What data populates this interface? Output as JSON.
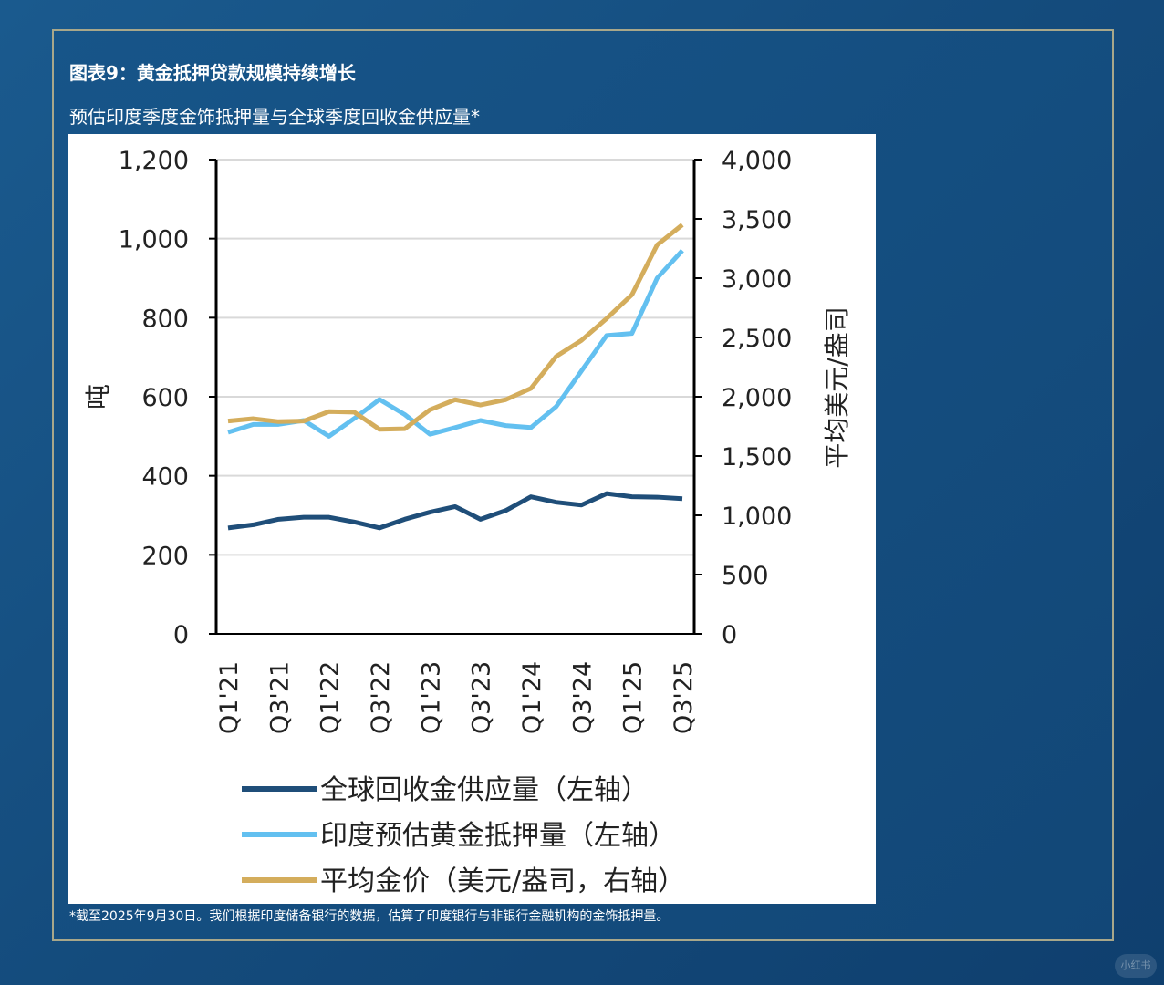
{
  "title": "图表9：黄金抵押贷款规模持续增长",
  "subtitle": "预估印度季度金饰抵押量与全球季度回收金供应量*",
  "footnote": "*截至2025年9月30日。我们根据印度储备银行的数据，估算了印度银行与非银行金融机构的金饰抵押量。",
  "watermark": "小红书",
  "chart_data": {
    "type": "line",
    "x": [
      "Q1'21",
      "Q2'21",
      "Q3'21",
      "Q4'21",
      "Q1'22",
      "Q2'22",
      "Q3'22",
      "Q4'22",
      "Q1'23",
      "Q2'23",
      "Q3'23",
      "Q4'23",
      "Q1'24",
      "Q2'24",
      "Q3'24",
      "Q4'24",
      "Q1'25",
      "Q2'25",
      "Q3'25"
    ],
    "x_tick_labels": [
      "Q1'21",
      "Q3'21",
      "Q1'22",
      "Q3'22",
      "Q1'23",
      "Q3'23",
      "Q1'24",
      "Q3'24",
      "Q1'25",
      "Q3'25"
    ],
    "ylabel_left": "吨",
    "ylabel_right": "平均美元/盎司",
    "ylim_left": [
      0,
      1200
    ],
    "ylim_right": [
      0,
      4000
    ],
    "yticks_left": [
      "0",
      "200",
      "400",
      "600",
      "800",
      "1,000",
      "1,200"
    ],
    "yticks_right": [
      "0",
      "500",
      "1,000",
      "1,500",
      "2,000",
      "2,500",
      "3,000",
      "3,500",
      "4,000"
    ],
    "grid": true,
    "legend_position": "bottom",
    "series": [
      {
        "name": "全球回收金供应量（左轴）",
        "axis": "left",
        "color": "#1f4e79",
        "values": [
          268,
          276,
          290,
          295,
          295,
          283,
          268,
          290,
          308,
          322,
          290,
          312,
          347,
          333,
          326,
          355,
          347,
          346,
          342
        ]
      },
      {
        "name": "印度预估黄金抵押量（左轴）",
        "axis": "left",
        "color": "#63c0f0",
        "values": [
          510,
          530,
          530,
          540,
          500,
          545,
          593,
          555,
          505,
          522,
          540,
          527,
          522,
          575,
          665,
          755,
          760,
          900,
          970
        ]
      },
      {
        "name": "平均金价（美元/盎司，右轴）",
        "axis": "right",
        "color": "#d4ad5c",
        "values": [
          1795,
          1815,
          1790,
          1795,
          1875,
          1870,
          1725,
          1730,
          1890,
          1975,
          1930,
          1975,
          2070,
          2340,
          2475,
          2660,
          2860,
          3280,
          3450
        ]
      }
    ]
  }
}
